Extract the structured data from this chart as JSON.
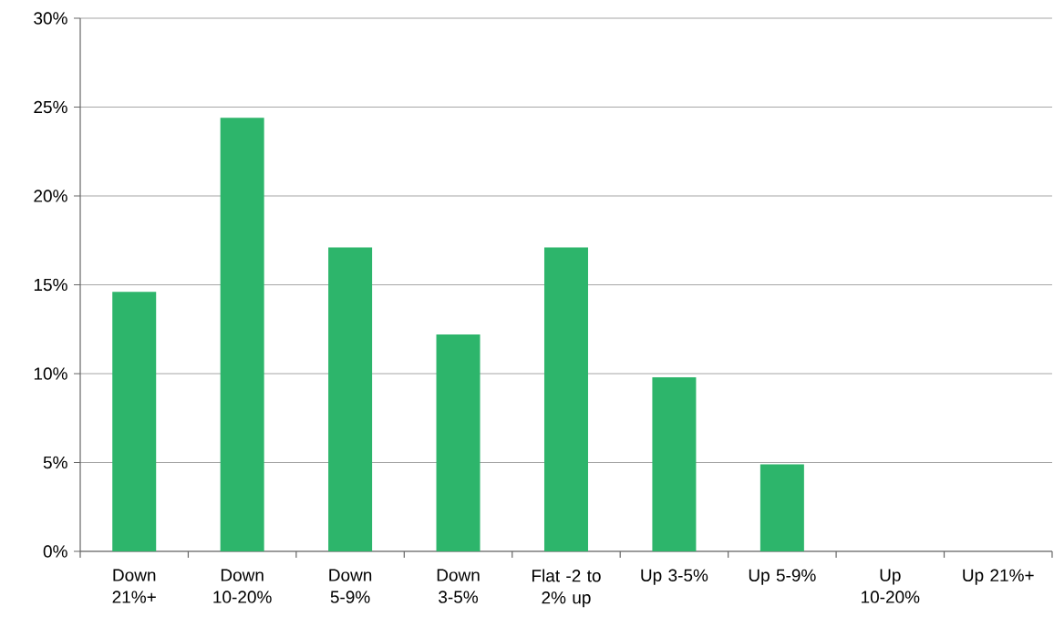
{
  "chart_data": {
    "type": "bar",
    "categories": [
      "Down 21%+",
      "Down 10-20%",
      "Down 5-9%",
      "Down 3-5%",
      "Flat -2 to 2% up",
      "Up 3-5%",
      "Up 5-9%",
      "Up 10-20%",
      "Up 21%+"
    ],
    "values": [
      14.6,
      24.4,
      17.1,
      12.2,
      17.1,
      9.8,
      4.9,
      0,
      0
    ],
    "color": "#2db56b",
    "ylim": [
      0,
      30
    ],
    "yticks": [
      {
        "value": 0,
        "label": "0%"
      },
      {
        "value": 5,
        "label": "5%"
      },
      {
        "value": 10,
        "label": "10%"
      },
      {
        "value": 15,
        "label": "15%"
      },
      {
        "value": 20,
        "label": "20%"
      },
      {
        "value": 25,
        "label": "25%"
      },
      {
        "value": 30,
        "label": "30%"
      }
    ],
    "grid": "y"
  }
}
